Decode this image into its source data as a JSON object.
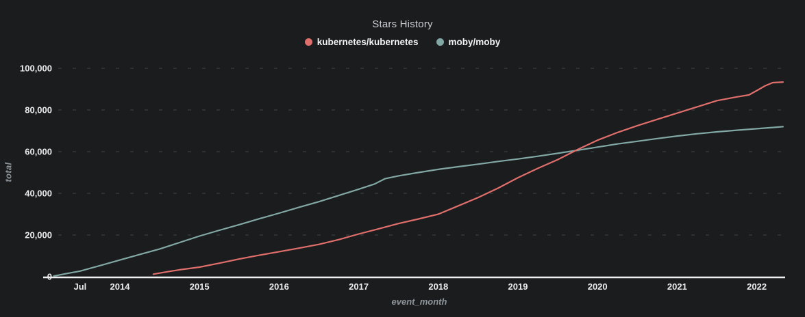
{
  "chart_data": {
    "type": "line",
    "title": "Stars History",
    "xlabel": "event_month",
    "ylabel": "total",
    "ylim": [
      0,
      100000
    ],
    "xlim_years": [
      2013.05,
      2022.5
    ],
    "grid": "horizontal-dashed",
    "legend_position": "top-center",
    "colors": {
      "background": "#1b1c1e",
      "axis_line": "#eef0f1",
      "gridline": "#32383a",
      "tick_text": "#e9ebed",
      "axis_title_text": "#8e959b",
      "title_text": "#c9cdd0"
    },
    "y_ticks": [
      {
        "value": 0,
        "label": "0"
      },
      {
        "value": 20000,
        "label": "20,000"
      },
      {
        "value": 40000,
        "label": "40,000"
      },
      {
        "value": 60000,
        "label": "60,000"
      },
      {
        "value": 80000,
        "label": "80,000"
      },
      {
        "value": 100000,
        "label": "100,000"
      }
    ],
    "x_ticks": [
      {
        "t": 2013.5,
        "label": "Jul"
      },
      {
        "t": 2014,
        "label": "2014"
      },
      {
        "t": 2015,
        "label": "2015"
      },
      {
        "t": 2016,
        "label": "2016"
      },
      {
        "t": 2017,
        "label": "2017"
      },
      {
        "t": 2018,
        "label": "2018"
      },
      {
        "t": 2019,
        "label": "2019"
      },
      {
        "t": 2020,
        "label": "2020"
      },
      {
        "t": 2021,
        "label": "2021"
      },
      {
        "t": 2022,
        "label": "2022"
      }
    ],
    "series": [
      {
        "name": "kubernetes/kubernetes",
        "color": "#e06f6c",
        "points": [
          [
            2014.42,
            1200
          ],
          [
            2014.6,
            2400
          ],
          [
            2014.75,
            3300
          ],
          [
            2015.0,
            4600
          ],
          [
            2015.25,
            6500
          ],
          [
            2015.5,
            8500
          ],
          [
            2015.75,
            10300
          ],
          [
            2016.0,
            12000
          ],
          [
            2016.25,
            13700
          ],
          [
            2016.5,
            15500
          ],
          [
            2016.75,
            17800
          ],
          [
            2017.0,
            20500
          ],
          [
            2017.25,
            23000
          ],
          [
            2017.5,
            25500
          ],
          [
            2017.75,
            27700
          ],
          [
            2018.0,
            30000
          ],
          [
            2018.25,
            34000
          ],
          [
            2018.5,
            38000
          ],
          [
            2018.75,
            42500
          ],
          [
            2019.0,
            47500
          ],
          [
            2019.25,
            52000
          ],
          [
            2019.5,
            56200
          ],
          [
            2019.75,
            61000
          ],
          [
            2020.0,
            65500
          ],
          [
            2020.25,
            69200
          ],
          [
            2020.5,
            72500
          ],
          [
            2020.75,
            75500
          ],
          [
            2021.0,
            78500
          ],
          [
            2021.25,
            81500
          ],
          [
            2021.5,
            84500
          ],
          [
            2021.75,
            86300
          ],
          [
            2021.9,
            87200
          ],
          [
            2022.0,
            89300
          ],
          [
            2022.1,
            91500
          ],
          [
            2022.2,
            93100
          ],
          [
            2022.33,
            93400
          ]
        ]
      },
      {
        "name": "moby/moby",
        "color": "#82a8a5",
        "points": [
          [
            2013.17,
            300
          ],
          [
            2013.33,
            1500
          ],
          [
            2013.5,
            2700
          ],
          [
            2013.75,
            5300
          ],
          [
            2014.0,
            8000
          ],
          [
            2014.25,
            10700
          ],
          [
            2014.5,
            13300
          ],
          [
            2014.75,
            16400
          ],
          [
            2015.0,
            19500
          ],
          [
            2015.25,
            22300
          ],
          [
            2015.5,
            25000
          ],
          [
            2015.75,
            27800
          ],
          [
            2016.0,
            30500
          ],
          [
            2016.25,
            33300
          ],
          [
            2016.5,
            36000
          ],
          [
            2016.75,
            39000
          ],
          [
            2017.0,
            42000
          ],
          [
            2017.2,
            44500
          ],
          [
            2017.33,
            47000
          ],
          [
            2017.5,
            48400
          ],
          [
            2017.75,
            50000
          ],
          [
            2018.0,
            51500
          ],
          [
            2018.25,
            52800
          ],
          [
            2018.5,
            54000
          ],
          [
            2018.75,
            55300
          ],
          [
            2019.0,
            56500
          ],
          [
            2019.25,
            57800
          ],
          [
            2019.5,
            59200
          ],
          [
            2019.75,
            60700
          ],
          [
            2020.0,
            62200
          ],
          [
            2020.25,
            63700
          ],
          [
            2020.5,
            65000
          ],
          [
            2020.75,
            66300
          ],
          [
            2021.0,
            67500
          ],
          [
            2021.25,
            68600
          ],
          [
            2021.5,
            69500
          ],
          [
            2021.75,
            70300
          ],
          [
            2022.0,
            71000
          ],
          [
            2022.2,
            71600
          ],
          [
            2022.33,
            72000
          ]
        ]
      }
    ]
  }
}
